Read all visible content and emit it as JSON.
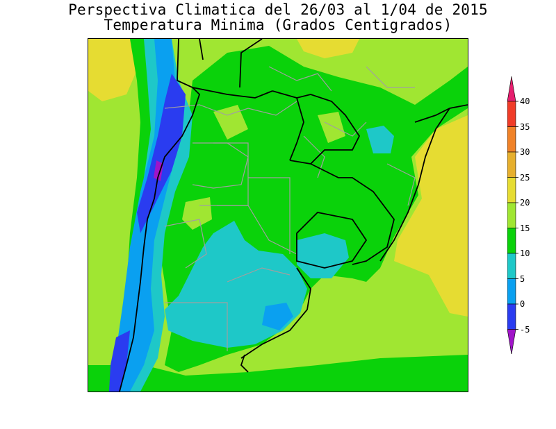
{
  "title": {
    "line1": "Perspectiva Climatica del 26/03 al 1/04 de 2015",
    "line2": "Temperatura Minima (Grados Centigrados)"
  },
  "colorbar": {
    "levels": [
      {
        "label": "-5",
        "color": "#2a3cf0"
      },
      {
        "label": "0",
        "color": "#0aa0f0"
      },
      {
        "label": "5",
        "color": "#1ec8c8"
      },
      {
        "label": "10",
        "color": "#0ad20a"
      },
      {
        "label": "15",
        "color": "#a0e632"
      },
      {
        "label": "20",
        "color": "#e6dc32"
      },
      {
        "label": "25",
        "color": "#e6af2d"
      },
      {
        "label": "30",
        "color": "#f08228"
      },
      {
        "label": "35",
        "color": "#f03c28"
      },
      {
        "label": "40",
        "color": "#e61e6e"
      }
    ],
    "below_color": "#a014c8",
    "above_color": "#e61e6e"
  }
}
